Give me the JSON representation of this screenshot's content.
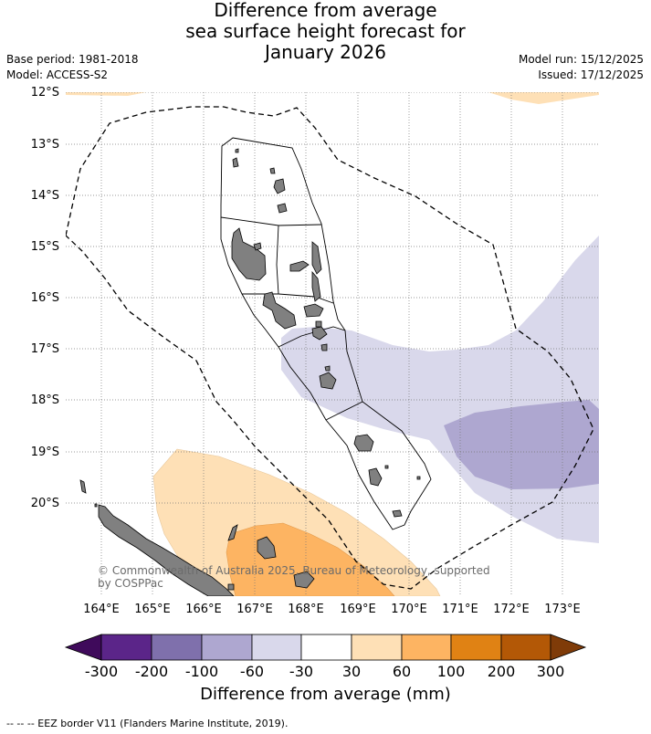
{
  "title": [
    "Difference from average",
    "sea surface height forecast for",
    "January 2026"
  ],
  "base_period": "Base period: 1981-2018",
  "model": "Model: ACCESS-S2",
  "model_run": "Model run: 15/12/2025",
  "issued": "Issued: 17/12/2025",
  "lat_labels": [
    "12°S",
    "13°S",
    "14°S",
    "15°S",
    "16°S",
    "17°S",
    "18°S",
    "19°S",
    "20°S"
  ],
  "lon_labels": [
    "164°E",
    "165°E",
    "166°E",
    "167°E",
    "168°E",
    "169°E",
    "170°E",
    "171°E",
    "172°E",
    "173°E"
  ],
  "copyright": [
    "© Commonwealth of Australia 2025, Bureau of Meteorology, supported",
    "by COSPPac"
  ],
  "colorbar": {
    "ticks": [
      "-300",
      "-200",
      "-100",
      "-60",
      "-30",
      "30",
      "60",
      "100",
      "200",
      "300"
    ],
    "colors": [
      "#3f0a5b",
      "#5b2589",
      "#7f70ac",
      "#aea7d0",
      "#d9d8eb",
      "#ffffff",
      "#fee0b6",
      "#fdb462",
      "#e08214",
      "#b35806",
      "#7f3b08"
    ],
    "label": "Difference from average (mm)"
  },
  "footnote": "--  --  -- EEZ border V11 (Flanders Marine Institute, 2019)."
}
